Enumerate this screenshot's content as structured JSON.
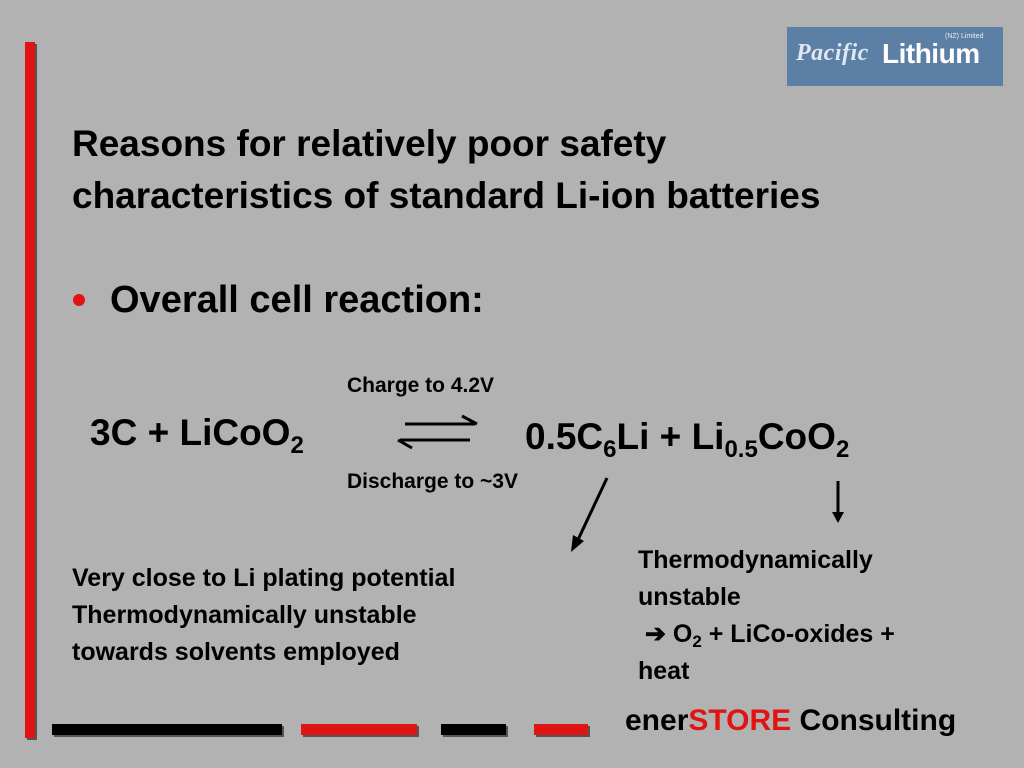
{
  "logo": {
    "script": "Pacific",
    "word": "Lithium",
    "small": "(NZ) Limited"
  },
  "title": {
    "line1": "Reasons for relatively poor safety",
    "line2": "characteristics of standard Li-ion batteries"
  },
  "bullet": "Overall cell reaction:",
  "reaction": {
    "left_a": "3C + LiCoO",
    "left_sub": "2",
    "charge": "Charge to 4.2V",
    "discharge": "Discharge to ~3V",
    "right_a": "0.5C",
    "right_sub1": "6",
    "right_b": "Li + Li",
    "right_sub2": "0.5",
    "right_c": "CoO",
    "right_sub3": "2"
  },
  "note_left": {
    "line1": "Very close to Li plating potential",
    "line2": "Thermodynamically unstable",
    "line3": "towards solvents employed"
  },
  "note_right": {
    "line1": "Thermodynamically",
    "line2": "unstable",
    "arrow": "➔",
    "o": "O",
    "o_sub": "2",
    "rest": " + LiCo-oxides +",
    "line4": "heat"
  },
  "footer": {
    "prefix": "ener",
    "brand": "STORE",
    "suffix": " Consulting"
  },
  "colors": {
    "background": "#b2b2b2",
    "accent_red": "#e11414",
    "logo_bg": "#5b7fa5"
  }
}
